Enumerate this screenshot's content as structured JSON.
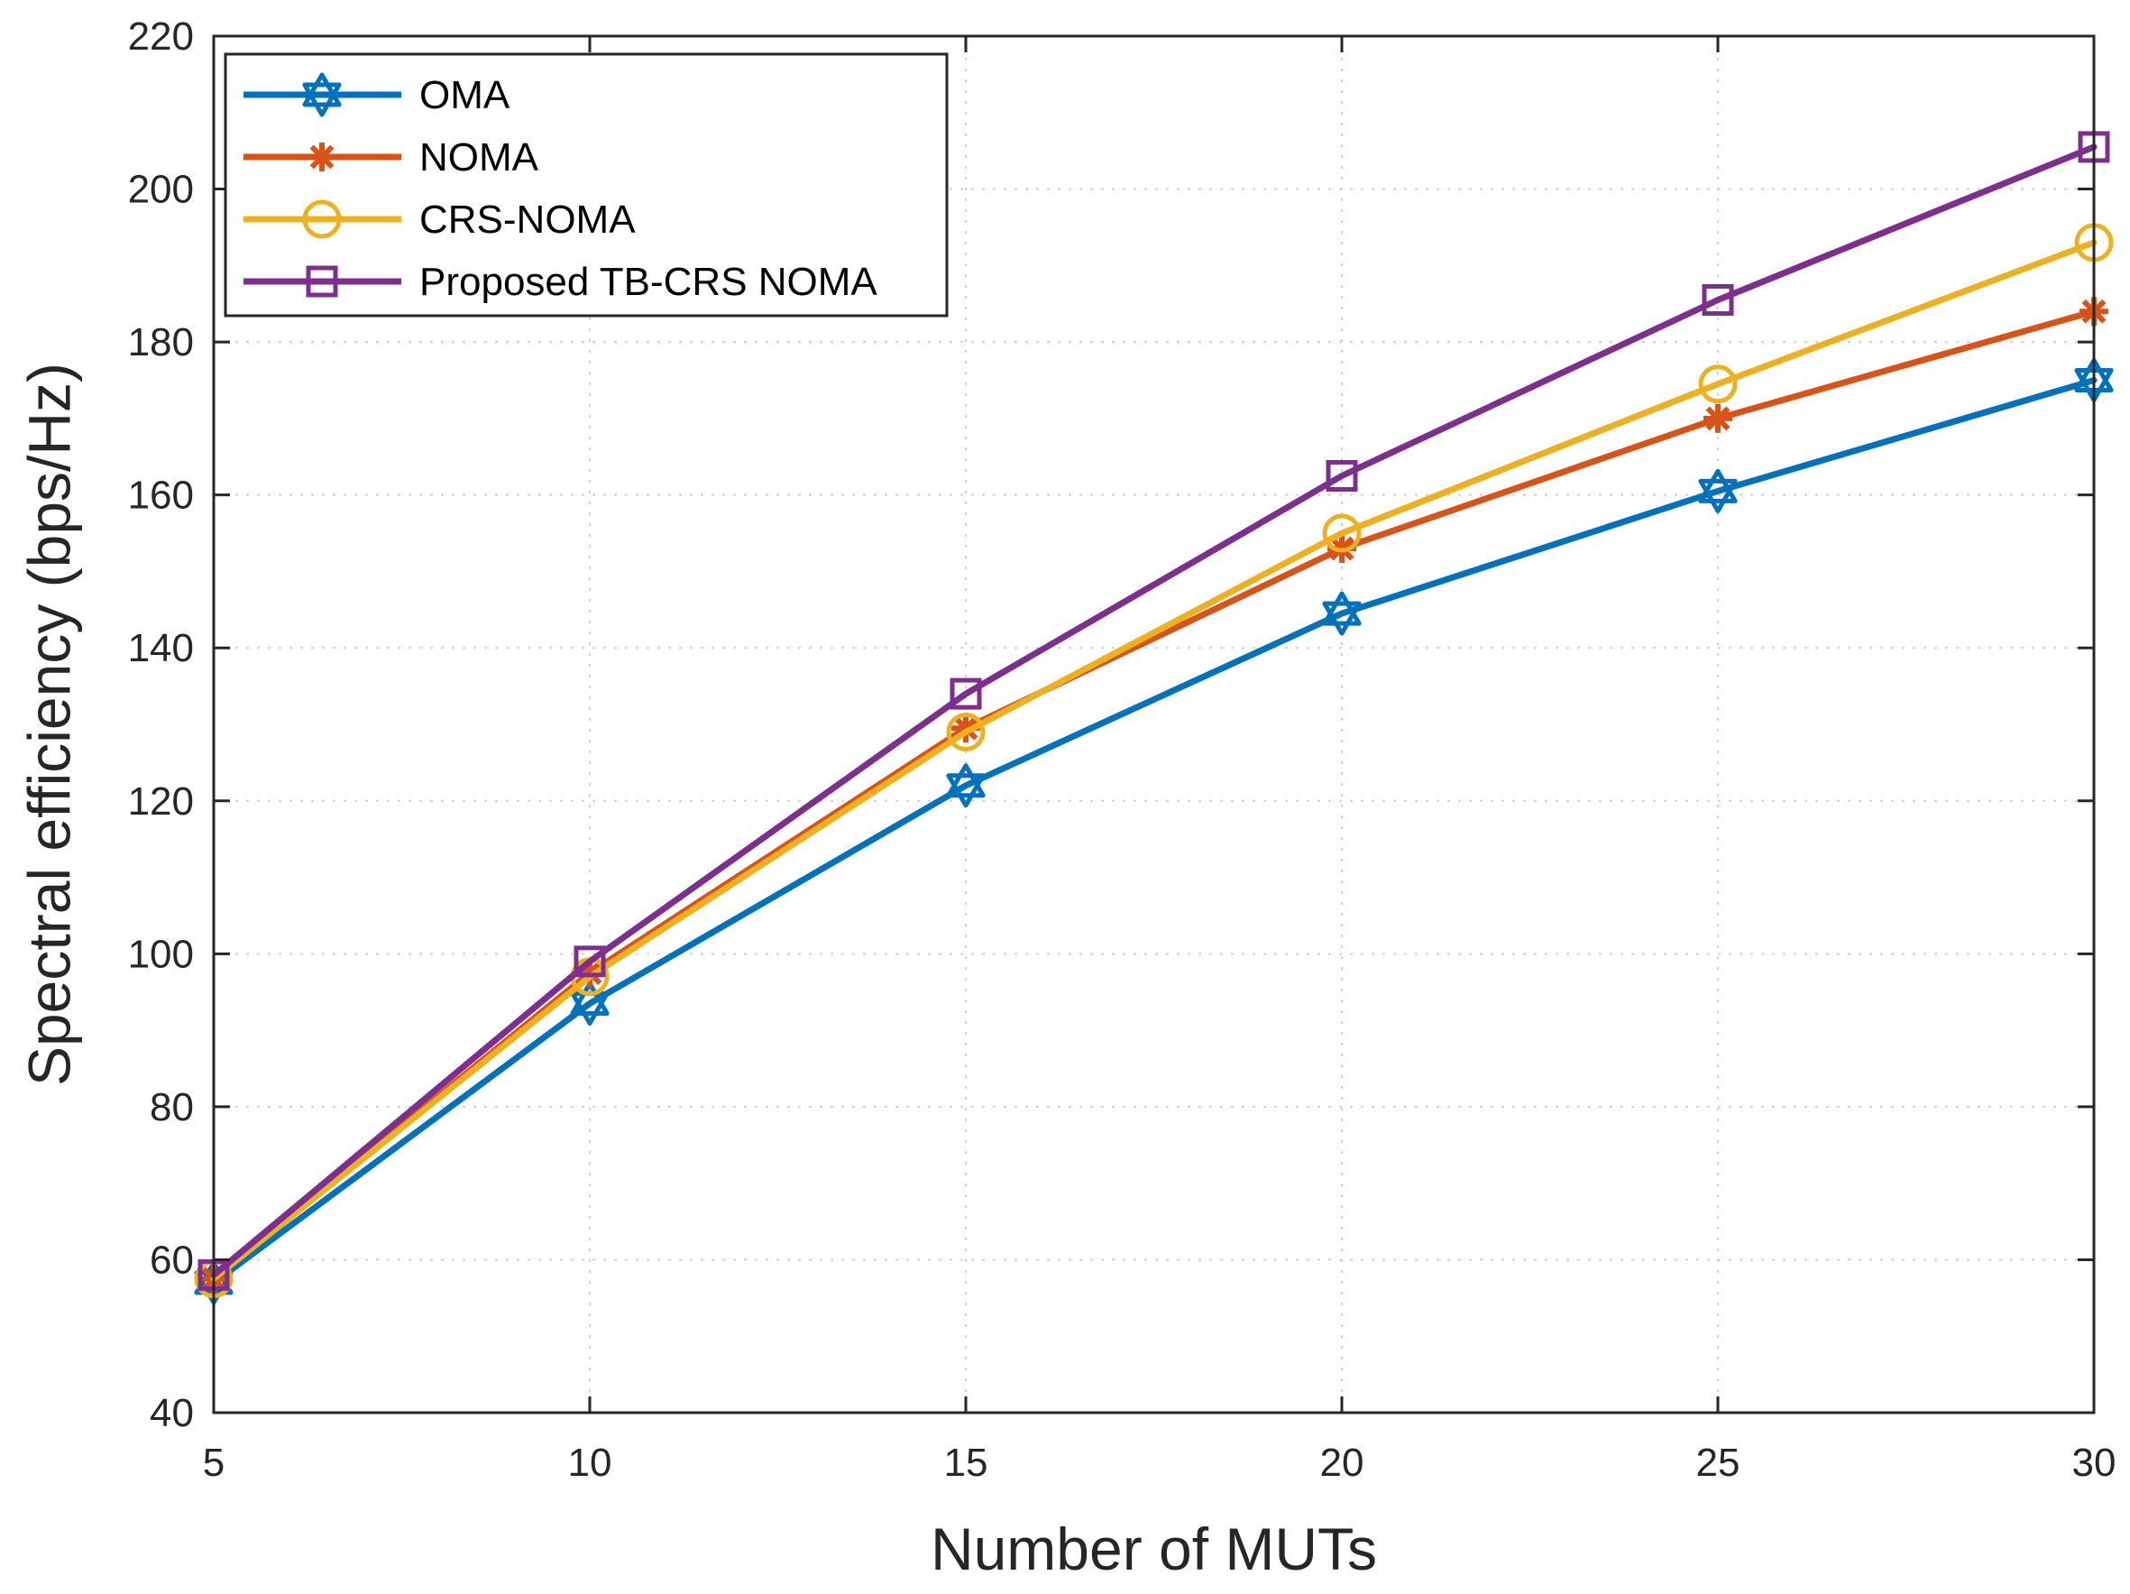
{
  "chart_data": {
    "type": "line",
    "title": "",
    "xlabel": "Number of MUTs",
    "ylabel": "Spectral efficiency (bps/Hz)",
    "x": [
      5,
      10,
      15,
      20,
      25,
      30
    ],
    "xlim": [
      5,
      30
    ],
    "ylim": [
      40,
      220
    ],
    "xticks": [
      "5",
      "10",
      "15",
      "20",
      "25",
      "30"
    ],
    "yticks": [
      "40",
      "60",
      "80",
      "100",
      "120",
      "140",
      "160",
      "180",
      "200",
      "220"
    ],
    "grid": true,
    "legend_position": "top-left",
    "series": [
      {
        "name": "OMA",
        "marker": "hexagram",
        "color": "#0072BD",
        "values": [
          57,
          93.5,
          122,
          144.5,
          160.5,
          175
        ]
      },
      {
        "name": "NOMA",
        "marker": "asterisk",
        "color": "#D95319",
        "values": [
          57.5,
          97.5,
          129.5,
          153,
          170,
          184
        ]
      },
      {
        "name": "CRS-NOMA",
        "marker": "circle",
        "color": "#EDB120",
        "values": [
          57.5,
          97,
          129,
          155,
          174.5,
          193
        ]
      },
      {
        "name": "Proposed TB-CRS NOMA",
        "marker": "square",
        "color": "#7E2F8E",
        "values": [
          58,
          99,
          134,
          162.5,
          185.5,
          205.5
        ]
      }
    ]
  }
}
